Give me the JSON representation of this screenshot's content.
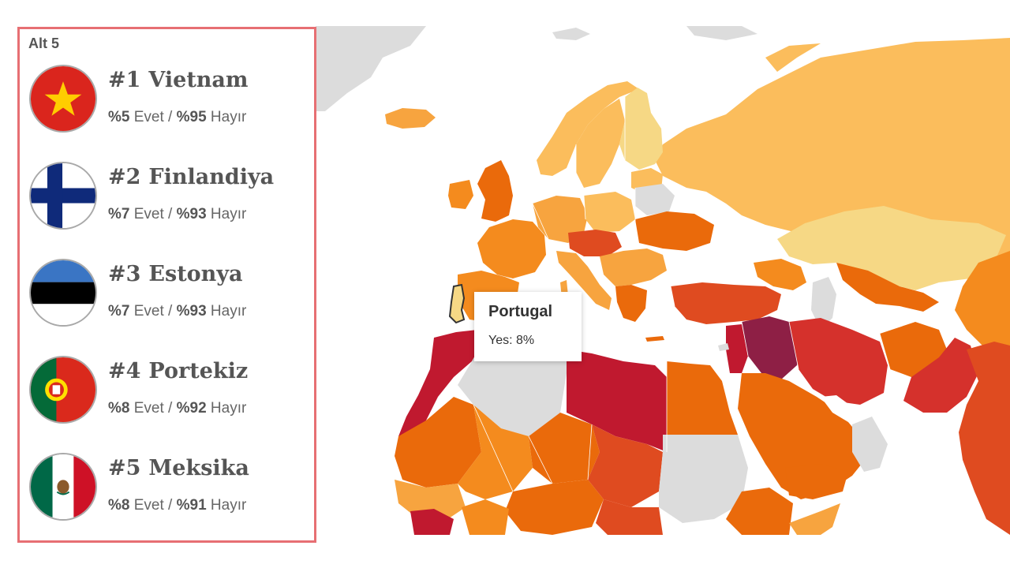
{
  "panel": {
    "title": "Alt 5",
    "entries": [
      {
        "rank": "#1",
        "name": "Vietnam",
        "yes": "%5",
        "yes_word": " Evet / ",
        "no": "%95",
        "no_word": " Hayır",
        "flag_icon": "vietnam-flag-icon"
      },
      {
        "rank": "#2",
        "name": "Finlandiya",
        "yes": "%7",
        "yes_word": " Evet / ",
        "no": "%93",
        "no_word": " Hayır",
        "flag_icon": "finland-flag-icon"
      },
      {
        "rank": "#3",
        "name": "Estonya",
        "yes": "%7",
        "yes_word": " Evet / ",
        "no": "%93",
        "no_word": " Hayır",
        "flag_icon": "estonia-flag-icon"
      },
      {
        "rank": "#4",
        "name": "Portekiz",
        "yes": "%8",
        "yes_word": " Evet / ",
        "no": "%92",
        "no_word": " Hayır",
        "flag_icon": "portugal-flag-icon"
      },
      {
        "rank": "#5",
        "name": "Meksika",
        "yes": "%8",
        "yes_word": " Evet / ",
        "no": "%91",
        "no_word": " Hayır",
        "flag_icon": "mexico-flag-icon"
      }
    ]
  },
  "tooltip": {
    "title": "Portugal",
    "value": "Yes: 8%"
  },
  "colors": {
    "panel_border": "#e76f73",
    "no_data": "#dcdcdc",
    "scale": [
      "#f6d885",
      "#fbbd5c",
      "#f7a43f",
      "#f48b1e",
      "#ea6a0b",
      "#df4b20",
      "#d5312c",
      "#c0192f",
      "#8e1f45"
    ]
  }
}
